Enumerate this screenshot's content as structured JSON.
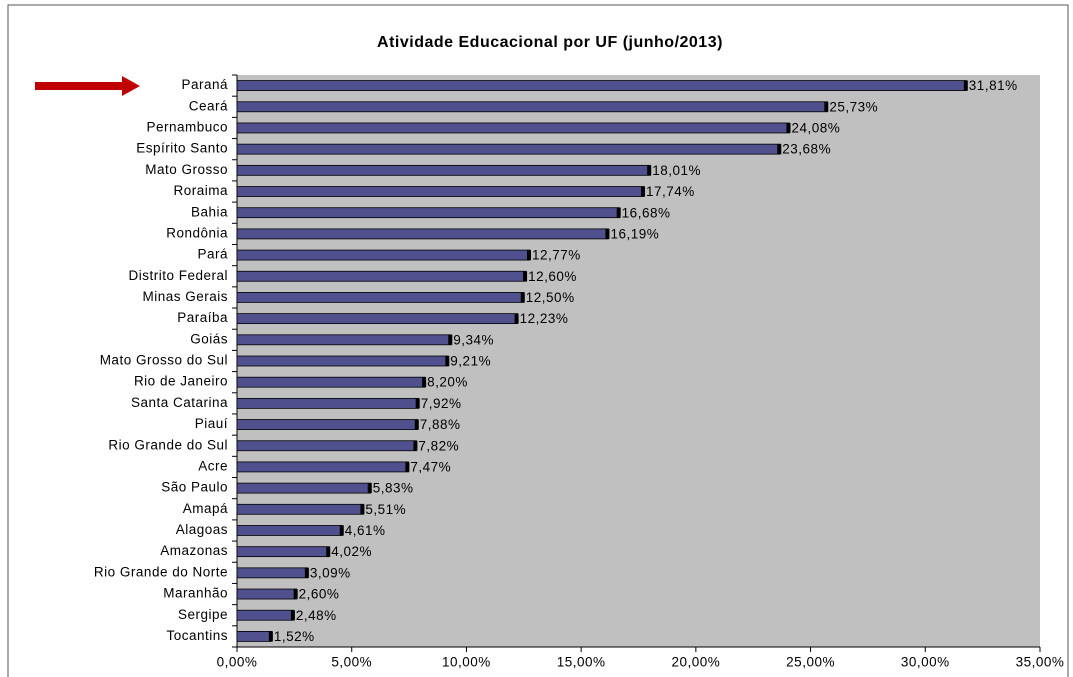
{
  "chart_data": {
    "type": "bar",
    "orientation": "horizontal",
    "title": "Atividade Educacional por UF (junho/2013)",
    "categories": [
      "Paraná",
      "Ceará",
      "Pernambuco",
      "Espírito Santo",
      "Mato Grosso",
      "Roraima",
      "Bahia",
      "Rondônia",
      "Pará",
      "Distrito Federal",
      "Minas Gerais",
      "Paraíba",
      "Goiás",
      "Mato Grosso do Sul",
      "Rio de Janeiro",
      "Santa Catarina",
      "Piauí",
      "Rio Grande do Sul",
      "Acre",
      "São Paulo",
      "Amapá",
      "Alagoas",
      "Amazonas",
      "Rio Grande do Norte",
      "Maranhão",
      "Sergipe",
      "Tocantins"
    ],
    "values": [
      31.81,
      25.73,
      24.08,
      23.68,
      18.01,
      17.74,
      16.68,
      16.19,
      12.77,
      12.6,
      12.5,
      12.23,
      9.34,
      9.21,
      8.2,
      7.92,
      7.88,
      7.82,
      7.47,
      5.83,
      5.51,
      4.61,
      4.02,
      3.09,
      2.6,
      2.48,
      1.52
    ],
    "value_labels": [
      "31,81%",
      "25,73%",
      "24,08%",
      "23,68%",
      "18,01%",
      "17,74%",
      "16,68%",
      "16,19%",
      "12,77%",
      "12,60%",
      "12,50%",
      "12,23%",
      "9,34%",
      "9,21%",
      "8,20%",
      "7,92%",
      "7,88%",
      "7,82%",
      "7,47%",
      "5,83%",
      "5,51%",
      "4,61%",
      "4,02%",
      "3,09%",
      "2,60%",
      "2,48%",
      "1,52%"
    ],
    "color": "#50508f",
    "xlim": [
      0,
      35
    ],
    "xticks": [
      {
        "value": 0,
        "label": "0,00%"
      },
      {
        "value": 5,
        "label": "5,00%"
      },
      {
        "value": 10,
        "label": "10,00%"
      },
      {
        "value": 15,
        "label": "15,00%"
      },
      {
        "value": 20,
        "label": "20,00%"
      },
      {
        "value": 25,
        "label": "25,00%"
      },
      {
        "value": 30,
        "label": "30,00%"
      },
      {
        "value": 35,
        "label": "35,00%"
      }
    ],
    "grid": false
  }
}
